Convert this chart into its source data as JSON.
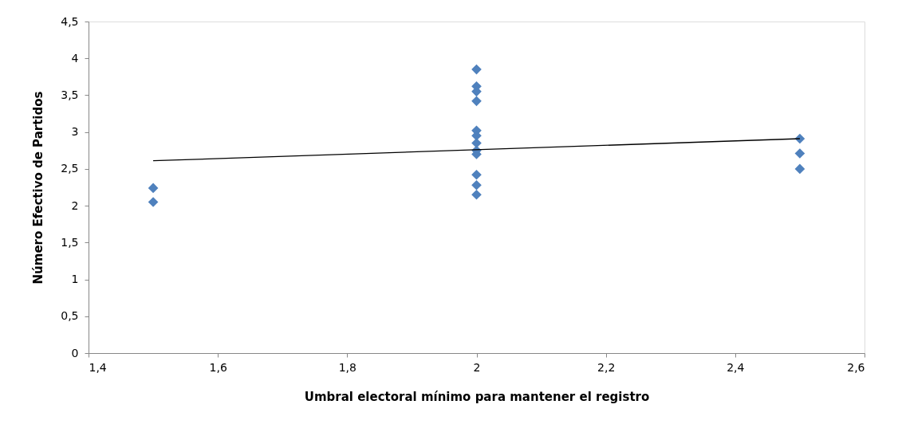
{
  "chart_data": {
    "type": "scatter",
    "xlabel": "Umbral electoral mínimo para mantener el registro",
    "ylabel": "Número Efectivo de Partidos",
    "xlim": [
      1.4,
      2.6
    ],
    "ylim": [
      0,
      4.5
    ],
    "xticks": [
      {
        "value": 1.4,
        "label": "1,4"
      },
      {
        "value": 1.6,
        "label": "1,6"
      },
      {
        "value": 1.8,
        "label": "1,8"
      },
      2,
      {
        "value": 2.2,
        "label": "2,2"
      },
      {
        "value": 2.4,
        "label": "2,4"
      },
      {
        "value": 2.6,
        "label": "2,6"
      }
    ],
    "yticks": [
      0,
      {
        "value": 0.5,
        "label": "0,5"
      },
      1,
      {
        "value": 1.5,
        "label": "1,5"
      },
      2,
      {
        "value": 2.5,
        "label": "2,5"
      },
      3,
      {
        "value": 3.5,
        "label": "3,5"
      },
      4,
      {
        "value": 4.5,
        "label": "4,5"
      }
    ],
    "grid": false,
    "series": [
      {
        "type": "scatter",
        "marker": "diamond",
        "color": "#4f81bd",
        "x": [
          1.5,
          1.5,
          2,
          2,
          2,
          2,
          2,
          2,
          2,
          2,
          2,
          2,
          2,
          2,
          2.5,
          2.5,
          2.5
        ],
        "values": [
          2.24,
          2.05,
          3.85,
          3.62,
          3.55,
          3.42,
          3.02,
          2.95,
          2.85,
          2.75,
          2.7,
          2.42,
          2.28,
          2.15,
          2.91,
          2.71,
          2.5
        ]
      },
      {
        "type": "line",
        "color": "#000000",
        "line_style": "solid",
        "x": [
          1.5,
          2.5
        ],
        "values": [
          2.61,
          2.91
        ]
      }
    ]
  }
}
